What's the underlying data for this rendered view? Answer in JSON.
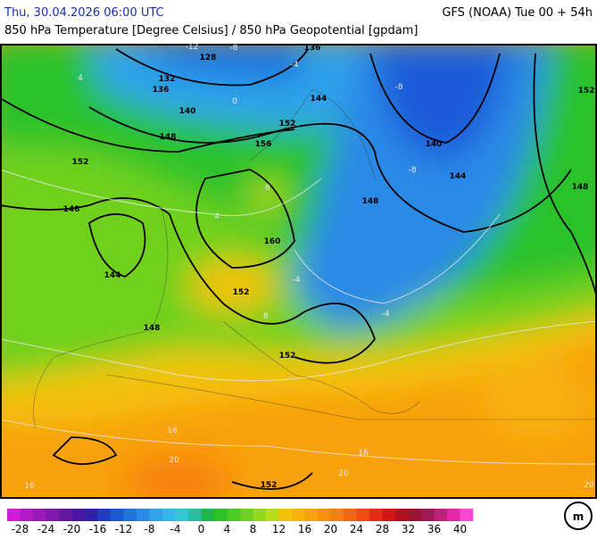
{
  "header": {
    "valid_time": "Thu, 30.04.2026 06:00 UTC",
    "model": "GFS (NOAA) Tue 00 + 54h",
    "subtitle": "850 hPa Temperature [Degree Celsius] / 850 hPa Geopotential [gpdam]"
  },
  "geopotential_labels": [
    128,
    132,
    136,
    140,
    148,
    152,
    148,
    144,
    156,
    152,
    144,
    136,
    140,
    144,
    148,
    160,
    152,
    148,
    152,
    152,
    148,
    152
  ],
  "temperature_labels": [
    -12,
    -8,
    -4,
    0,
    4,
    -8,
    -8,
    8,
    4,
    -4,
    -4,
    8,
    16,
    20,
    16,
    20,
    16,
    20
  ],
  "colorbar": {
    "range": [
      -30,
      42
    ],
    "ticks": [
      -28,
      -24,
      -20,
      -16,
      -12,
      -8,
      -4,
      0,
      4,
      8,
      12,
      16,
      20,
      24,
      28,
      32,
      36,
      40
    ],
    "colors": [
      "#d21bd8",
      "#b21bc4",
      "#9a1ab8",
      "#7e19ab",
      "#6417a1",
      "#4a17a3",
      "#2f20b0",
      "#1f3bc7",
      "#1a5ad9",
      "#1f74e0",
      "#2a8ae6",
      "#2fa3ea",
      "#30b8e6",
      "#2ec8d4",
      "#26c0a0",
      "#1db84a",
      "#2cc22a",
      "#4ccb22",
      "#6fd11e",
      "#94d81b",
      "#b9dd18",
      "#f4c20d",
      "#f7b20c",
      "#f8a10c",
      "#f8900d",
      "#f77d0e",
      "#f5650f",
      "#f24a11",
      "#e72a13",
      "#d41317",
      "#b5101f",
      "#9e1330",
      "#a11a55",
      "#c21f7c",
      "#e625a8",
      "#fb46d6"
    ]
  }
}
